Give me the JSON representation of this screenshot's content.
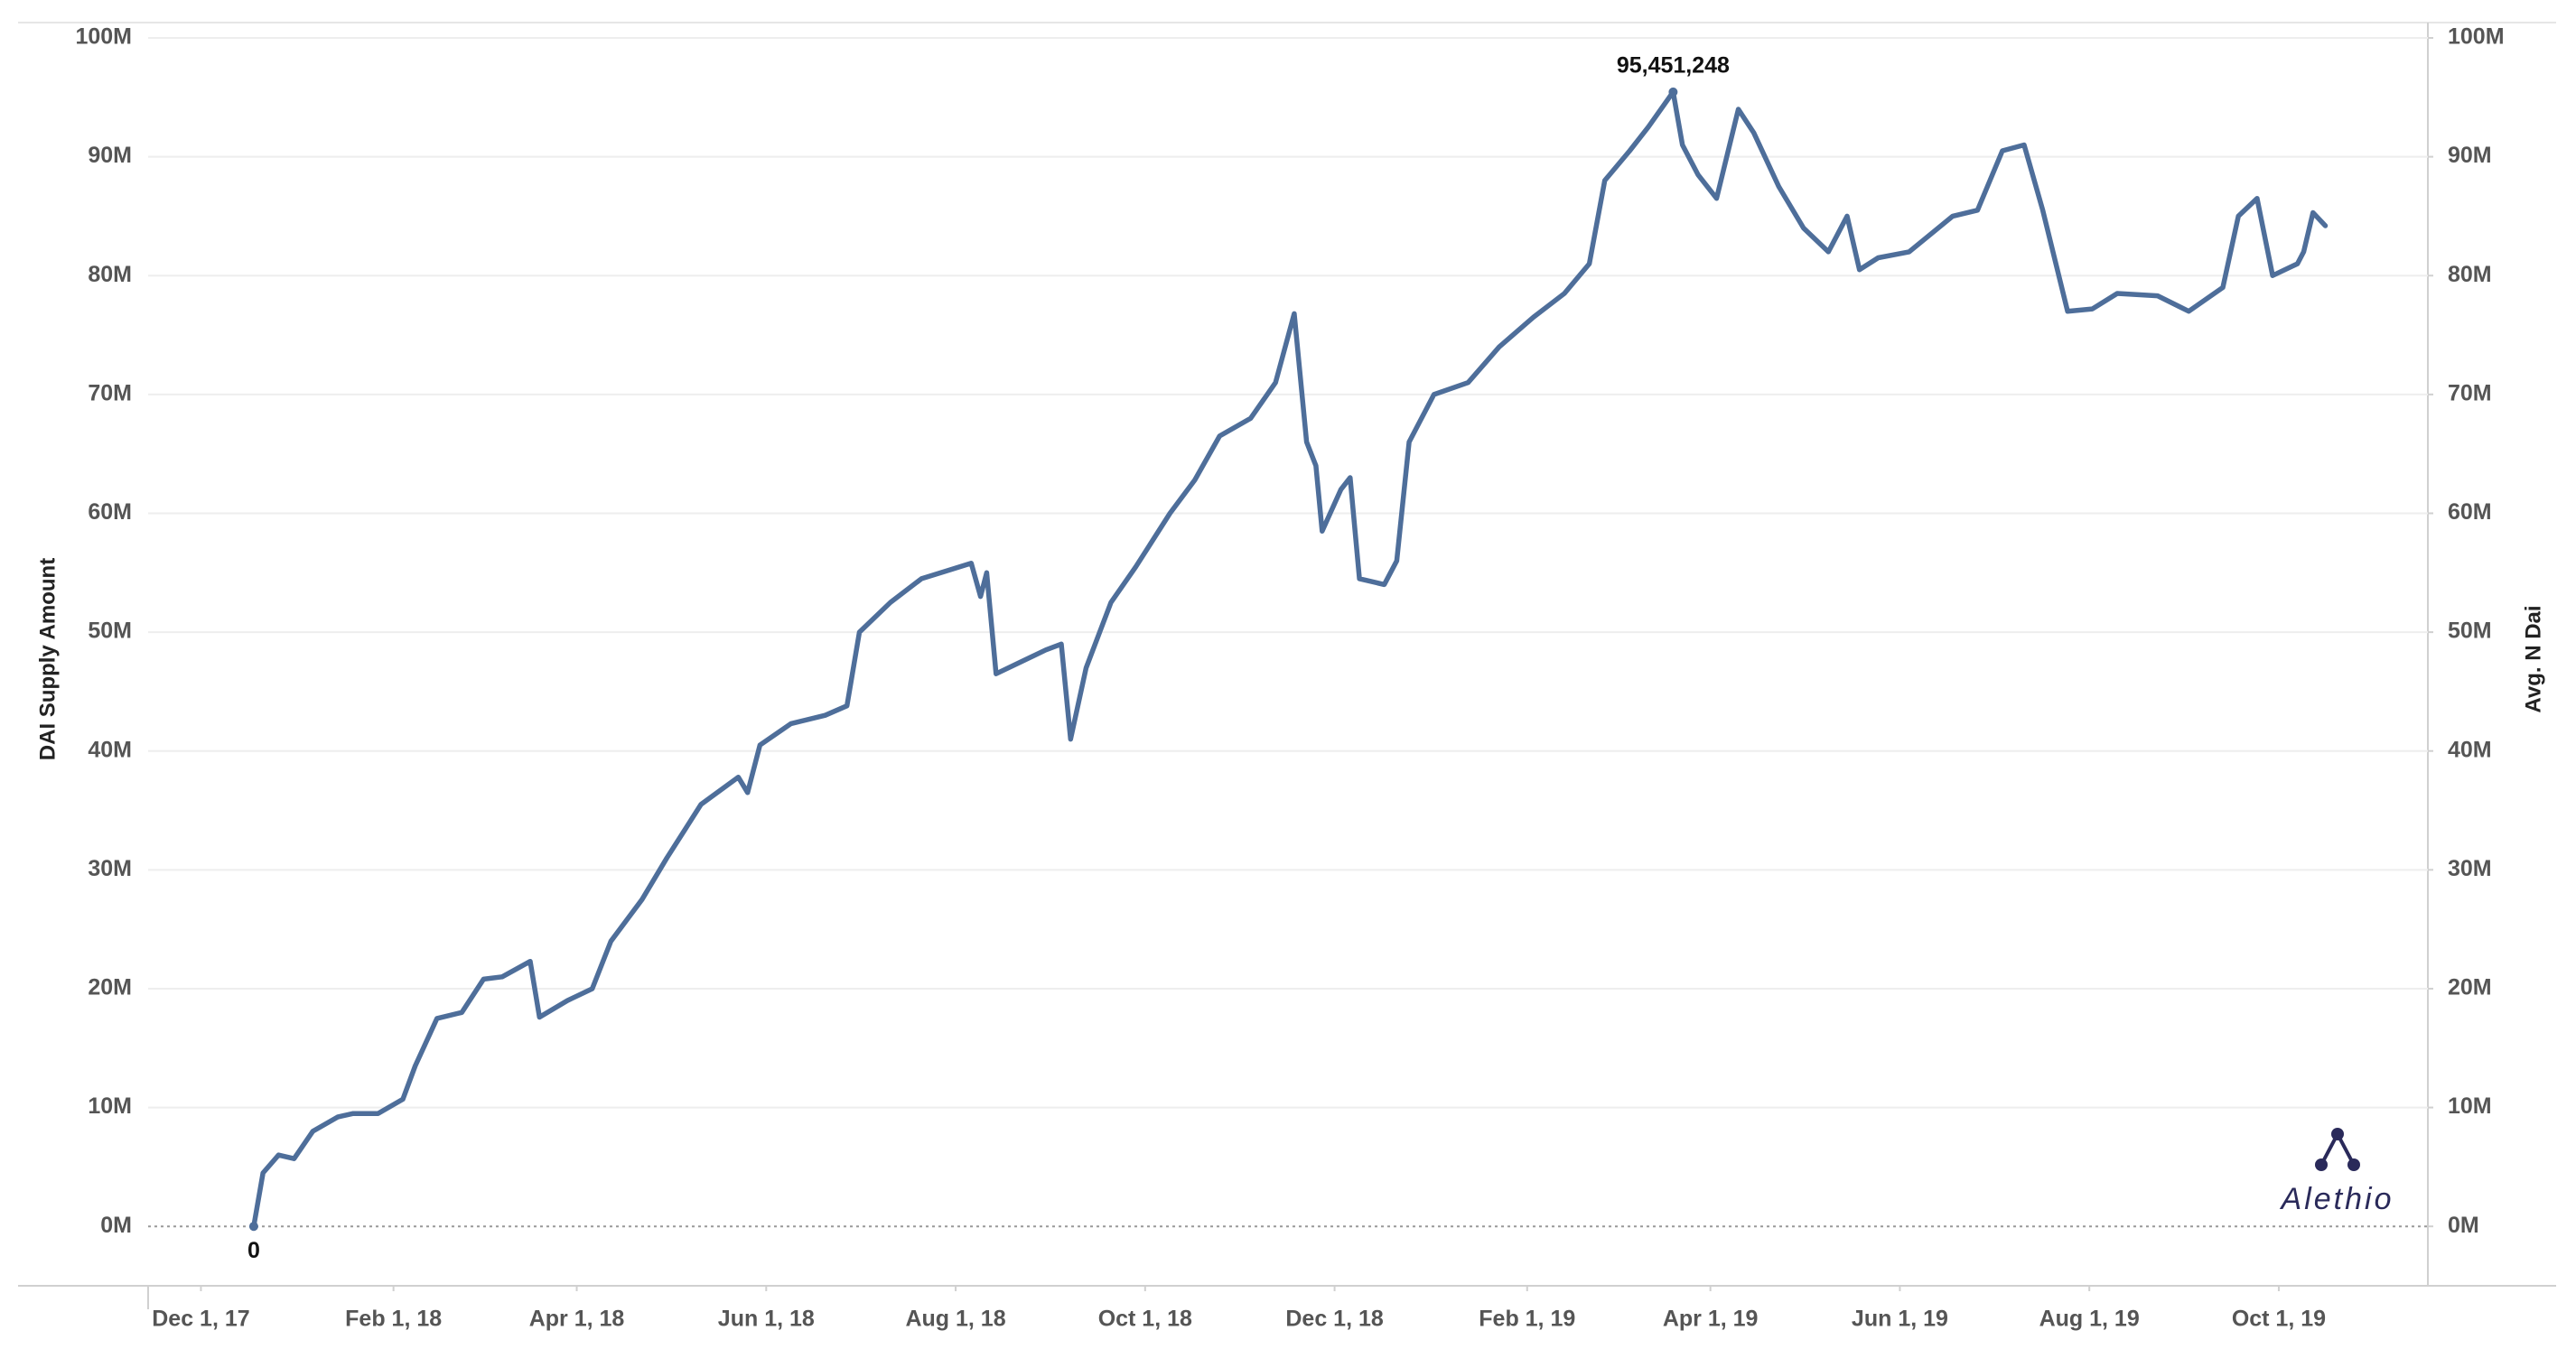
{
  "chart_data": {
    "type": "line",
    "y_label": "DAI Supply Amount",
    "y2_label": "Avg. N Dai",
    "watermark": "Alethio",
    "color": "#4e6e9a",
    "grid": true,
    "xlim": [
      "2017-11-14",
      "2019-11-18"
    ],
    "xticks": [
      {
        "value": "2017-12-01",
        "label": "Dec 1, 17"
      },
      {
        "value": "2018-02-01",
        "label": "Feb 1, 18"
      },
      {
        "value": "2018-04-01",
        "label": "Apr 1, 18"
      },
      {
        "value": "2018-06-01",
        "label": "Jun 1, 18"
      },
      {
        "value": "2018-08-01",
        "label": "Aug 1, 18"
      },
      {
        "value": "2018-10-01",
        "label": "Oct 1, 18"
      },
      {
        "value": "2018-12-01",
        "label": "Dec 1, 18"
      },
      {
        "value": "2019-02-01",
        "label": "Feb 1, 19"
      },
      {
        "value": "2019-04-01",
        "label": "Apr 1, 19"
      },
      {
        "value": "2019-06-01",
        "label": "Jun 1, 19"
      },
      {
        "value": "2019-08-01",
        "label": "Aug 1, 19"
      },
      {
        "value": "2019-10-01",
        "label": "Oct 1, 19"
      }
    ],
    "ylim": [
      -5000000,
      100000000
    ],
    "yticks": [
      {
        "value": 0,
        "label": "0M"
      },
      {
        "value": 10000000,
        "label": "10M"
      },
      {
        "value": 20000000,
        "label": "20M"
      },
      {
        "value": 30000000,
        "label": "30M"
      },
      {
        "value": 40000000,
        "label": "40M"
      },
      {
        "value": 50000000,
        "label": "50M"
      },
      {
        "value": 60000000,
        "label": "60M"
      },
      {
        "value": 70000000,
        "label": "70M"
      },
      {
        "value": 80000000,
        "label": "80M"
      },
      {
        "value": 90000000,
        "label": "90M"
      },
      {
        "value": 100000000,
        "label": "100M"
      }
    ],
    "y2lim": [
      -5000000,
      100000000
    ],
    "y2ticks": [
      {
        "value": 0,
        "label": "0M"
      },
      {
        "value": 10000000,
        "label": "10M"
      },
      {
        "value": 20000000,
        "label": "20M"
      },
      {
        "value": 30000000,
        "label": "30M"
      },
      {
        "value": 40000000,
        "label": "40M"
      },
      {
        "value": 50000000,
        "label": "50M"
      },
      {
        "value": 60000000,
        "label": "60M"
      },
      {
        "value": 70000000,
        "label": "70M"
      },
      {
        "value": 80000000,
        "label": "80M"
      },
      {
        "value": 90000000,
        "label": "90M"
      },
      {
        "value": 100000000,
        "label": "100M"
      }
    ],
    "x": [
      "2017-12-18",
      "2017-12-21",
      "2017-12-26",
      "2017-12-31",
      "2018-01-06",
      "2018-01-14",
      "2018-01-19",
      "2018-01-27",
      "2018-02-04",
      "2018-02-08",
      "2018-02-15",
      "2018-02-23",
      "2018-03-02",
      "2018-03-08",
      "2018-03-17",
      "2018-03-20",
      "2018-03-29",
      "2018-04-06",
      "2018-04-12",
      "2018-04-22",
      "2018-04-30",
      "2018-05-11",
      "2018-05-23",
      "2018-05-26",
      "2018-05-30",
      "2018-06-09",
      "2018-06-20",
      "2018-06-27",
      "2018-07-01",
      "2018-07-11",
      "2018-07-21",
      "2018-08-06",
      "2018-08-09",
      "2018-08-11",
      "2018-08-14",
      "2018-08-22",
      "2018-08-30",
      "2018-09-04",
      "2018-09-07",
      "2018-09-12",
      "2018-09-20",
      "2018-09-28",
      "2018-10-09",
      "2018-10-17",
      "2018-10-25",
      "2018-11-04",
      "2018-11-12",
      "2018-11-18",
      "2018-11-22",
      "2018-11-25",
      "2018-11-27",
      "2018-12-03",
      "2018-12-06",
      "2018-12-09",
      "2018-12-17",
      "2018-12-21",
      "2018-12-25",
      "2019-01-02",
      "2019-01-13",
      "2019-01-23",
      "2019-02-03",
      "2019-02-13",
      "2019-02-21",
      "2019-02-26",
      "2019-03-06",
      "2019-03-12",
      "2019-03-20",
      "2019-03-23",
      "2019-03-28",
      "2019-04-03",
      "2019-04-10",
      "2019-04-15",
      "2019-04-23",
      "2019-05-01",
      "2019-05-09",
      "2019-05-15",
      "2019-05-19",
      "2019-05-25",
      "2019-06-04",
      "2019-06-18",
      "2019-06-26",
      "2019-07-04",
      "2019-07-11",
      "2019-07-17",
      "2019-07-25",
      "2019-08-02",
      "2019-08-10",
      "2019-08-23",
      "2019-09-02",
      "2019-09-13",
      "2019-09-18",
      "2019-09-24",
      "2019-09-29",
      "2019-10-07",
      "2019-10-09",
      "2019-10-12",
      "2019-10-16"
    ],
    "values": [
      0,
      4500000,
      6000000,
      5700000,
      8000000,
      9200000,
      9500000,
      9500000,
      10700000,
      13500000,
      17500000,
      18000000,
      20800000,
      21000000,
      22300000,
      17600000,
      19000000,
      20000000,
      24000000,
      27500000,
      31000000,
      35500000,
      37800000,
      36500000,
      40500000,
      42300000,
      43000000,
      43800000,
      50000000,
      52500000,
      54500000,
      55800000,
      53000000,
      55000000,
      46500000,
      47500000,
      48500000,
      49000000,
      41000000,
      47000000,
      52500000,
      55500000,
      60000000,
      62800000,
      66500000,
      68000000,
      71000000,
      76800000,
      66000000,
      64000000,
      58500000,
      62000000,
      63000000,
      54500000,
      54000000,
      56000000,
      66000000,
      70000000,
      71000000,
      74000000,
      76500000,
      78500000,
      81000000,
      88000000,
      90500000,
      92500000,
      95451248,
      91000000,
      88500000,
      86500000,
      94000000,
      92000000,
      87500000,
      84000000,
      82000000,
      85000000,
      80500000,
      81500000,
      82000000,
      85000000,
      85500000,
      90500000,
      91000000,
      85500000,
      77000000,
      77200000,
      78500000,
      78300000,
      77000000,
      79000000,
      85000000,
      86500000,
      80000000,
      81000000,
      82000000,
      85300000,
      84200000
    ],
    "annotations": [
      {
        "x": "2019-03-20",
        "y": 95451248,
        "text": "95,451,248"
      },
      {
        "x": "2017-12-18",
        "y": 0,
        "text": "0"
      }
    ]
  }
}
